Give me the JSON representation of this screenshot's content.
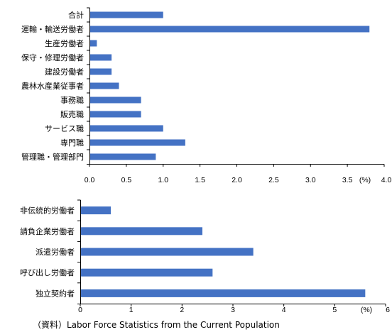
{
  "chart_data": [
    {
      "type": "bar",
      "orientation": "horizontal",
      "categories": [
        "合計",
        "運輸・輸送労働者",
        "生産労働者",
        "保守・修理労働者",
        "建設労働者",
        "農林水産業従事者",
        "事務職",
        "販売職",
        "サービス職",
        "専門職",
        "管理職・管理部門"
      ],
      "values": [
        1.0,
        3.8,
        0.1,
        0.3,
        0.3,
        0.4,
        0.7,
        0.7,
        1.0,
        1.3,
        0.9
      ],
      "xlim": [
        0,
        4.0
      ],
      "xticks": [
        "0.0",
        "0.5",
        "1.0",
        "1.5",
        "2.0",
        "2.5",
        "3.0",
        "3.5",
        "4.0"
      ],
      "unit_label": "(%)",
      "grid": false,
      "color": "#4472c4"
    },
    {
      "type": "bar",
      "orientation": "horizontal",
      "categories": [
        "非伝統的労働者",
        "請負企業労働者",
        "派遣労働者",
        "呼び出し労働者",
        "独立契約者"
      ],
      "values": [
        0.6,
        2.4,
        3.4,
        2.6,
        5.6
      ],
      "xlim": [
        0,
        6
      ],
      "xticks": [
        "0",
        "1",
        "2",
        "3",
        "4",
        "5",
        "6"
      ],
      "unit_label": "(%)",
      "grid": false,
      "color": "#4472c4"
    }
  ],
  "source": "（資料）Labor Force Statistics from the Current Population"
}
